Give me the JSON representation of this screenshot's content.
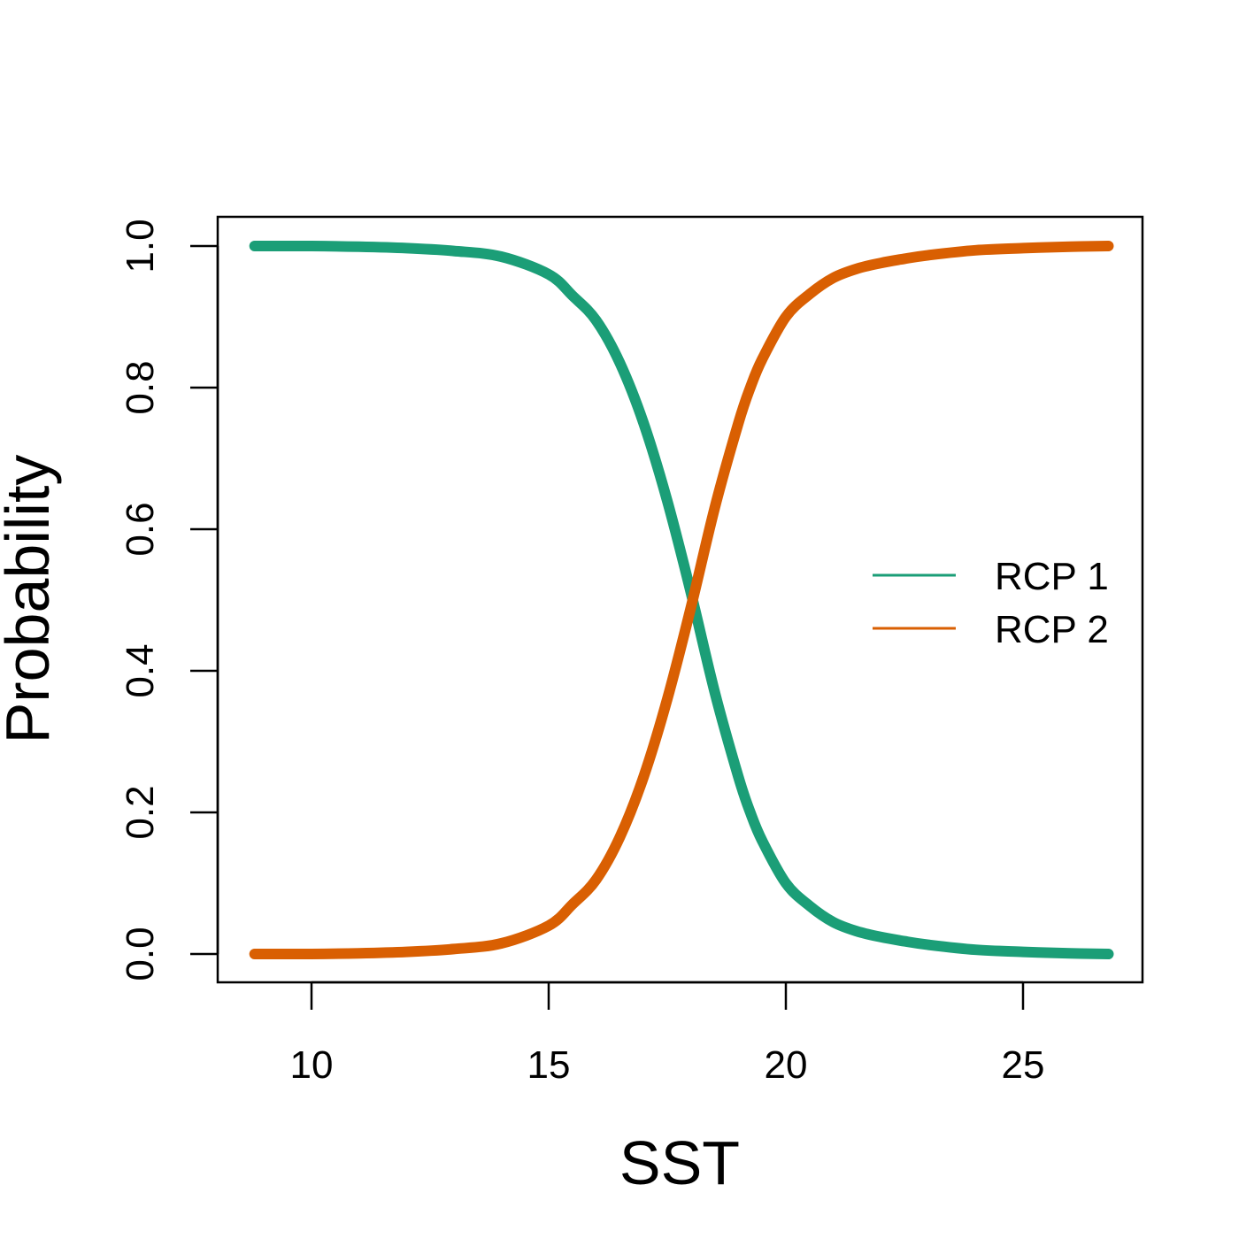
{
  "chart_data": {
    "type": "line",
    "title": "",
    "xlabel": "SST",
    "ylabel": "Probability",
    "xlim": [
      8.8,
      26.8
    ],
    "ylim": [
      0,
      1
    ],
    "xticks": [
      10,
      15,
      20,
      25
    ],
    "yticks": [
      "0.0",
      "0.2",
      "0.4",
      "0.6",
      "0.8",
      "1.0"
    ],
    "grid": false,
    "legend_position": "right",
    "x": [
      8.8,
      10,
      11,
      12,
      13,
      14,
      15,
      15.5,
      16,
      16.5,
      17,
      17.5,
      18,
      18.5,
      19,
      19.25,
      19.5,
      20,
      20.5,
      21,
      21.5,
      22,
      22.5,
      23,
      24,
      25,
      26,
      26.8
    ],
    "series": [
      {
        "name": "RCP 1",
        "color": "#1b9e77",
        "values": [
          1.0,
          1.0,
          0.999,
          0.997,
          0.993,
          0.985,
          0.96,
          0.93,
          0.895,
          0.835,
          0.75,
          0.64,
          0.51,
          0.37,
          0.25,
          0.2,
          0.16,
          0.1,
          0.068,
          0.045,
          0.032,
          0.024,
          0.018,
          0.013,
          0.006,
          0.003,
          0.001,
          0.0
        ]
      },
      {
        "name": "RCP 2",
        "color": "#d95f02",
        "values": [
          0.0,
          0.0,
          0.001,
          0.003,
          0.007,
          0.015,
          0.04,
          0.07,
          0.105,
          0.165,
          0.25,
          0.36,
          0.49,
          0.63,
          0.75,
          0.8,
          0.84,
          0.9,
          0.932,
          0.955,
          0.968,
          0.976,
          0.982,
          0.987,
          0.994,
          0.997,
          0.999,
          1.0
        ]
      }
    ]
  }
}
